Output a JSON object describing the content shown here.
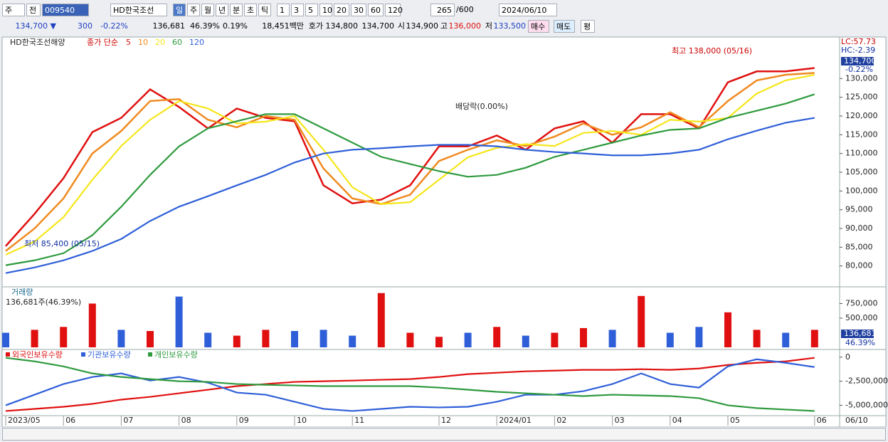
{
  "toolbar": {
    "market": "주",
    "prev": "전",
    "code": "009540",
    "name": "HD한국조선",
    "periods": [
      "일",
      "주",
      "월",
      "년",
      "분",
      "초",
      "틱"
    ],
    "intervals": [
      "1",
      "3",
      "5",
      "10",
      "20",
      "30",
      "60",
      "120"
    ],
    "count": "265",
    "max": "/600",
    "date": "2024/06/10"
  },
  "quote_bar": {
    "price": "134,700 ▼",
    "change": "300",
    "change_pct": "-0.22%",
    "volume": "136,681",
    "volume_ratio": "46.39%",
    "turnover": "0.19%",
    "amount": "18,451백만",
    "ask_label": "호가",
    "ask": "134,800",
    "bid": "134,700",
    "open_label": "시",
    "open": "134,900",
    "high_label": "고",
    "high": "136,000",
    "low_label": "저",
    "low": "133,500",
    "buy": "매수",
    "sell": "매도",
    "avg": "평"
  },
  "chart_data": [
    {
      "type": "line",
      "title": "HD한국조선해양",
      "subtitle": "종가 단순",
      "ylim": [
        75000,
        140500
      ],
      "yticks": [
        {
          "value": 80000,
          "label": "80,000"
        },
        {
          "value": 85000,
          "label": "85,000"
        },
        {
          "value": 90000,
          "label": "90,000"
        },
        {
          "value": 95000,
          "label": "95,000"
        },
        {
          "value": 100000,
          "label": "100,000"
        },
        {
          "value": 105000,
          "label": "105,000"
        },
        {
          "value": 110000,
          "label": "110,000"
        },
        {
          "value": 115000,
          "label": "115,000"
        },
        {
          "value": 120000,
          "label": "120,000"
        },
        {
          "value": 125000,
          "label": "125,000"
        },
        {
          "value": 130000,
          "label": "130,000"
        }
      ],
      "series": [
        {
          "name": "5",
          "color": "#e01010",
          "values": [
            85300,
            93900,
            103400,
            115700,
            119500,
            127100,
            122400,
            116700,
            122000,
            119500,
            118600,
            101500,
            96700,
            97700,
            101500,
            111900,
            111900,
            114800,
            111000,
            116700,
            118600,
            112900,
            120500,
            120500,
            116700,
            129000,
            131900,
            131900,
            132800
          ]
        },
        {
          "name": "10",
          "color": "#f08a20",
          "values": [
            84000,
            90000,
            98000,
            110000,
            116000,
            124000,
            124500,
            119000,
            117000,
            120000,
            119000,
            106000,
            98000,
            96500,
            99000,
            108000,
            111000,
            113500,
            112000,
            114500,
            118000,
            115000,
            117000,
            121000,
            117000,
            124000,
            129500,
            131000,
            131500
          ]
        },
        {
          "name": "20",
          "color": "#f5e61a",
          "values": [
            83000,
            86500,
            93000,
            103000,
            112000,
            119000,
            124000,
            122000,
            118000,
            118500,
            120000,
            111000,
            101000,
            96500,
            97000,
            103000,
            109000,
            111500,
            112500,
            112000,
            115500,
            116000,
            115000,
            119000,
            118500,
            119500,
            126000,
            129500,
            131000
          ]
        },
        {
          "name": "60",
          "color": "#2e9a3e",
          "values": [
            80200,
            81500,
            83400,
            88200,
            95800,
            104300,
            111900,
            116700,
            118600,
            120500,
            120500,
            116700,
            112900,
            109100,
            107200,
            105300,
            103800,
            104300,
            106200,
            109100,
            111000,
            112900,
            114800,
            116300,
            116700,
            119500,
            121400,
            123300,
            125800
          ]
        },
        {
          "name": "120",
          "color": "#2f5fd8",
          "values": [
            78100,
            79600,
            81500,
            84000,
            87200,
            92000,
            95800,
            98600,
            101500,
            104300,
            107600,
            110000,
            111000,
            111400,
            111900,
            112300,
            112300,
            111900,
            111000,
            110400,
            110000,
            109500,
            109500,
            110000,
            111000,
            113800,
            116100,
            118200,
            119500
          ]
        }
      ],
      "high_label": "최고 138,000 (05/16)",
      "low_label": "최저 85,400 (05/15)",
      "ex_dividend_label": "배당락(0.00%)",
      "price_tag": "134,700",
      "change_tag": "-0.22%",
      "lc_label": "LC:57.73",
      "hc_label": "HC:-2.39",
      "grid": false
    },
    {
      "type": "bar",
      "title": "거래량",
      "volume_label": "136,681주(46.39%)",
      "ylim": [
        0,
        1000000
      ],
      "yticks": [
        {
          "value": 500000,
          "label": "500,000"
        },
        {
          "value": 750000,
          "label": "750,000"
        }
      ],
      "values": [
        250000,
        300000,
        350000,
        750000,
        300000,
        280000,
        870000,
        250000,
        200000,
        300000,
        280000,
        300000,
        200000,
        930000,
        250000,
        180000,
        250000,
        350000,
        200000,
        250000,
        330000,
        300000,
        880000,
        250000,
        350000,
        600000,
        300000,
        250000,
        300000
      ],
      "colors": [
        "#2f5fd8",
        "#e01010",
        "#e01010",
        "#e01010",
        "#2f5fd8",
        "#e01010",
        "#2f5fd8",
        "#2f5fd8",
        "#e01010",
        "#e01010",
        "#2f5fd8",
        "#2f5fd8",
        "#2f5fd8",
        "#e01010",
        "#e01010",
        "#e01010",
        "#2f5fd8",
        "#e01010",
        "#2f5fd8",
        "#e01010",
        "#e01010",
        "#2f5fd8",
        "#e01010",
        "#2f5fd8",
        "#2f5fd8",
        "#e01010",
        "#e01010",
        "#2f5fd8",
        "#e01010"
      ],
      "price_tag": "136,681",
      "ratio_tag": "46.39%"
    },
    {
      "type": "line",
      "ylim": [
        -6000000,
        500000
      ],
      "yticks": [
        0,
        {
          "value": -2500000,
          "label": "-2,500,000"
        },
        {
          "value": -5000000,
          "label": "-5,000,000"
        }
      ],
      "categories": [
        "2023/05",
        null,
        "06",
        null,
        "07",
        null,
        "08",
        null,
        "09",
        null,
        "10",
        null,
        "11",
        null,
        null,
        "12",
        null,
        "2024/01",
        null,
        "02",
        null,
        "03",
        null,
        "04",
        null,
        "05",
        null,
        null,
        "06"
      ],
      "cursor_date": "06/10",
      "series": [
        {
          "name": "외국인보유수량",
          "color": "#e01010",
          "values": [
            -5590000,
            -5370000,
            -5150000,
            -4850000,
            -4410000,
            -4120000,
            -3750000,
            -3380000,
            -3010000,
            -2790000,
            -2570000,
            -2500000,
            -2430000,
            -2350000,
            -2280000,
            -2060000,
            -1760000,
            -1620000,
            -1470000,
            -1400000,
            -1320000,
            -1320000,
            -1250000,
            -1320000,
            -1180000,
            -810000,
            -590000,
            -440000,
            -70000
          ]
        },
        {
          "name": "기관보유수량",
          "color": "#2f5fd8",
          "values": [
            -5000000,
            -3900000,
            -2790000,
            -2060000,
            -1690000,
            -2430000,
            -2060000,
            -2650000,
            -3680000,
            -3900000,
            -4630000,
            -5370000,
            -5590000,
            -5370000,
            -5150000,
            -5220000,
            -5150000,
            -4630000,
            -3900000,
            -3900000,
            -3530000,
            -2790000,
            -1690000,
            -2790000,
            -3160000,
            -960000,
            -220000,
            -590000,
            -1030000
          ]
        },
        {
          "name": "개인보유수량",
          "color": "#2e9a3e",
          "values": [
            -70000,
            -440000,
            -960000,
            -1690000,
            -2060000,
            -2280000,
            -2500000,
            -2570000,
            -2790000,
            -2870000,
            -2940000,
            -3010000,
            -3010000,
            -3010000,
            -3010000,
            -3160000,
            -3380000,
            -3600000,
            -3750000,
            -3900000,
            -4040000,
            -3900000,
            -3970000,
            -4040000,
            -4260000,
            -5000000,
            -5290000,
            -5440000,
            -5590000
          ]
        }
      ]
    }
  ]
}
